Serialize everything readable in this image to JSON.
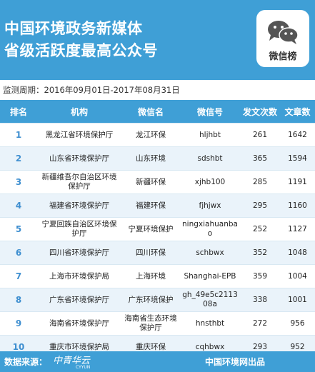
{
  "header": {
    "title_line1": "中国环境政务新媒体",
    "title_line2": "省级活跃度最高公众号",
    "badge_label": "微信榜"
  },
  "period": "监测周期：2016年09月01日-2017年08月31日",
  "table": {
    "columns": [
      "排名",
      "机构",
      "微信名",
      "微信号",
      "发文次数",
      "文章数"
    ],
    "rows": [
      {
        "rank": "1",
        "org": "黑龙江省环境保护厅",
        "name": "龙江环保",
        "id": "hljhbt",
        "posts": "261",
        "articles": "1642"
      },
      {
        "rank": "2",
        "org": "山东省环境保护厅",
        "name": "山东环境",
        "id": "sdshbt",
        "posts": "365",
        "articles": "1594"
      },
      {
        "rank": "3",
        "org": "新疆维吾尔自治区环境保护厅",
        "name": "新疆环保",
        "id": "xjhb100",
        "posts": "285",
        "articles": "1191"
      },
      {
        "rank": "4",
        "org": "福建省环境保护厅",
        "name": "福建环保",
        "id": "fjhjwx",
        "posts": "295",
        "articles": "1160"
      },
      {
        "rank": "5",
        "org": "宁夏回族自治区环境保护厅",
        "name": "宁夏环境保护",
        "id": "ningxiahuanbao",
        "posts": "252",
        "articles": "1127"
      },
      {
        "rank": "6",
        "org": "四川省环境保护厅",
        "name": "四川环保",
        "id": "schbwx",
        "posts": "352",
        "articles": "1048"
      },
      {
        "rank": "7",
        "org": "上海市环境保护局",
        "name": "上海环境",
        "id": "Shanghai-EPB",
        "posts": "359",
        "articles": "1004"
      },
      {
        "rank": "8",
        "org": "广东省环境保护厅",
        "name": "广东环境保护",
        "id": "gh_49e5c211308a",
        "posts": "338",
        "articles": "1001"
      },
      {
        "rank": "9",
        "org": "海南省环境保护厅",
        "name": "海南省生态环境保护厅",
        "id": "hnsthbt",
        "posts": "272",
        "articles": "956"
      },
      {
        "rank": "10",
        "org": "重庆市环境保护局",
        "name": "重庆环保",
        "id": "cqhbwx",
        "posts": "293",
        "articles": "952"
      }
    ]
  },
  "footer": {
    "source_label": "数据来源：",
    "logo_text": "中青华云",
    "logo_sub": "CYYUN",
    "credit": "中国环境网出品"
  },
  "colors": {
    "brand": "#3f9fd6",
    "row_alt": "#eaf3fa",
    "rank": "#3f8fd0"
  }
}
